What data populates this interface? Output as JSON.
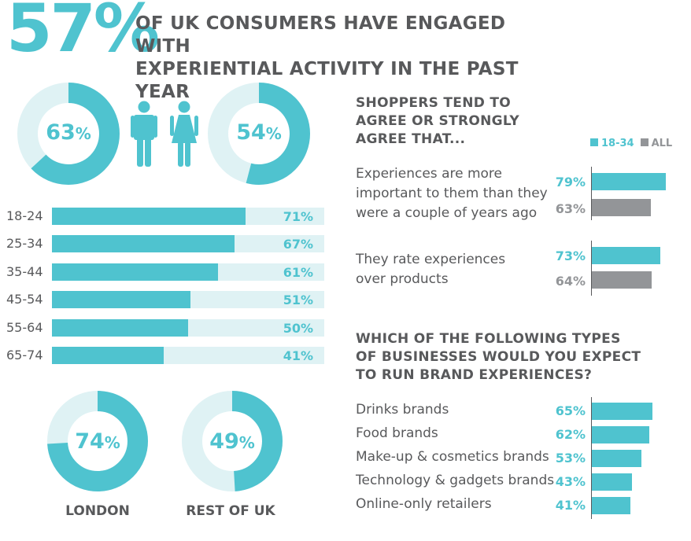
{
  "header": {
    "big_percent": "57%",
    "headline_line1": "OF UK CONSUMERS HAVE ENGAGED WITH",
    "headline_line2": "EXPERIENTIAL ACTIVITY IN THE PAST YEAR"
  },
  "gender": {
    "male": {
      "value": "63",
      "unit": "%",
      "fraction": 0.63,
      "icon": "male-icon"
    },
    "female": {
      "value": "54",
      "unit": "%",
      "fraction": 0.54,
      "icon": "female-icon"
    }
  },
  "regions": {
    "london": {
      "value": "74",
      "unit": "%",
      "fraction": 0.74,
      "label": "LONDON"
    },
    "rest": {
      "value": "49",
      "unit": "%",
      "fraction": 0.49,
      "label": "REST OF UK"
    }
  },
  "colors": {
    "teal": "#4fc3cf",
    "teal_light": "#dff2f4",
    "grey": "#939598",
    "text": "#58595b"
  },
  "agree": {
    "title": [
      "SHOPPERS TEND TO",
      "AGREE OR STRONGLY",
      "AGREE THAT..."
    ],
    "legend": {
      "a": "18-34",
      "b": "ALL"
    },
    "items": [
      {
        "lines": [
          "Experiences are more",
          "important to them than they",
          "were a couple of years ago"
        ],
        "a": 79,
        "a_label": "79%",
        "b": 63,
        "b_label": "63%"
      },
      {
        "lines": [
          "They rate experiences",
          "over products"
        ],
        "a": 73,
        "a_label": "73%",
        "b": 64,
        "b_label": "64%"
      }
    ]
  },
  "business": {
    "title": [
      "WHICH OF THE FOLLOWING TYPES",
      "OF BUSINESSES WOULD YOU EXPECT",
      "TO RUN BRAND EXPERIENCES?"
    ]
  },
  "chart_data": [
    {
      "type": "bar",
      "categories": [
        "18-24",
        "25-34",
        "35-44",
        "45-54",
        "55-64",
        "65-74"
      ],
      "values": [
        71,
        67,
        61,
        51,
        50,
        41
      ],
      "labels": [
        "71%",
        "67%",
        "61%",
        "51%",
        "50%",
        "41%"
      ],
      "ylim": [
        0,
        100
      ],
      "orientation": "horizontal"
    },
    {
      "type": "bar",
      "categories": [
        "Drinks brands",
        "Food brands",
        "Make-up & cosmetics brands",
        "Technology & gadgets brands",
        "Online-only retailers"
      ],
      "values": [
        65,
        62,
        53,
        43,
        41
      ],
      "labels": [
        "65%",
        "62%",
        "53%",
        "43%",
        "41%"
      ],
      "orientation": "horizontal"
    }
  ]
}
